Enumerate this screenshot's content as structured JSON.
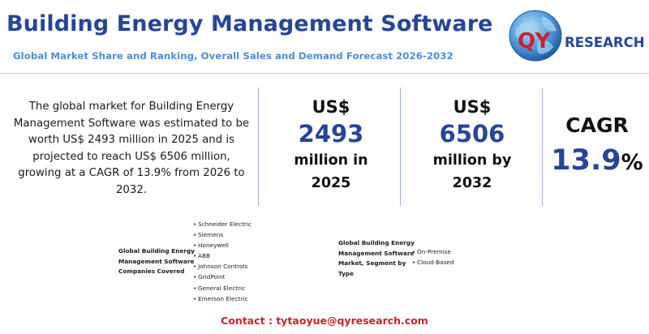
{
  "header": {
    "title": "Building Energy Management Software",
    "subtitle": "Global Market Share and Ranking, Overall Sales and Demand Forecast 2026-2032"
  },
  "logo": {
    "text_qy": "QY",
    "text_research": "RESEARCH"
  },
  "summary": {
    "text": "The global market for Building Energy Management Software was estimated to be worth US$ 2493 million in 2025 and is projected to reach US$ 6506 million, growing at a CAGR of 13.9% from 2026 to 2032."
  },
  "stats": {
    "market_2025": {
      "prefix": "US$",
      "value": "2493",
      "suffix_line1": "million in",
      "suffix_line2": "2025"
    },
    "market_2032": {
      "prefix": "US$",
      "value": "6506",
      "suffix_line1": "million by",
      "suffix_line2": "2032"
    },
    "cagr": {
      "label": "CAGR",
      "value": "13.9",
      "unit": "%"
    }
  },
  "companies": {
    "label_line1": "Global Building Energy",
    "label_line2": "Management Software",
    "label_line3": "Companies Covered",
    "items": [
      "Schneider Electric",
      "Siemens",
      "Honeywell",
      "ABB",
      "Johnson Controls",
      "GridPoint",
      "General Electric",
      "Emerson Electric"
    ]
  },
  "segments": {
    "label_line1": "Global Building Energy",
    "label_line2": "Management Software",
    "label_line3": "Market, Segment by",
    "label_line4": "Type",
    "items": [
      "On-Premise",
      "Cloud-Based"
    ]
  },
  "contact": {
    "text": "Contact : tytaoyue@qyresearch.com"
  },
  "colors": {
    "brand_blue": "#26459a",
    "subtitle_blue": "#4b8fd6",
    "brand_red": "#c8242c",
    "divider_blue": "#9fb2d8"
  }
}
